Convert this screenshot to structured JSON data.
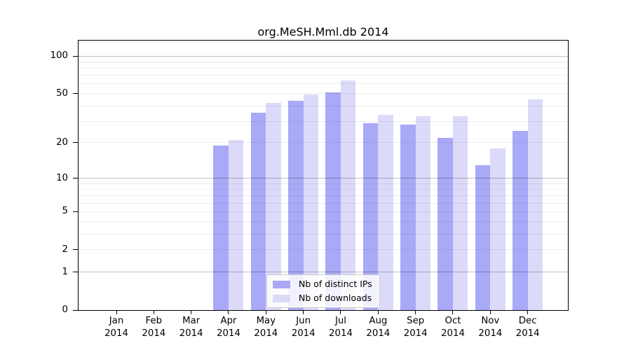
{
  "title": "org.MeSH.Mml.db 2014",
  "colors": {
    "distinct_ips_bar": "#a9a9f7",
    "downloads_bar": "#dbdbf9",
    "axis": "#000000"
  },
  "legend": {
    "position": "lower center",
    "items": [
      {
        "label": "Nb of distinct IPs",
        "color": "#a9a9f7"
      },
      {
        "label": "Nb of downloads",
        "color": "#dbdbf9"
      }
    ]
  },
  "chart_data": {
    "type": "bar",
    "title": "org.MeSH.Mml.db 2014",
    "categories": [
      "Jan 2014",
      "Feb 2014",
      "Mar 2014",
      "Apr 2014",
      "May 2014",
      "Jun 2014",
      "Jul 2014",
      "Aug 2014",
      "Sep 2014",
      "Oct 2014",
      "Nov 2014",
      "Dec 2014"
    ],
    "series": [
      {
        "name": "Nb of distinct IPs",
        "color": "#a9a9f7",
        "values": [
          0,
          0,
          0,
          19,
          35,
          44,
          51,
          29,
          28,
          22,
          13,
          25
        ]
      },
      {
        "name": "Nb of downloads",
        "color": "#dbdbf9",
        "values": [
          0,
          0,
          0,
          21,
          42,
          49,
          64,
          34,
          33,
          33,
          18,
          45
        ]
      }
    ],
    "xlabel": "",
    "ylabel": "",
    "yscale": "log1p",
    "ylim": [
      0,
      134
    ],
    "yticks": [
      0,
      1,
      2,
      5,
      10,
      20,
      50,
      100
    ],
    "minor_gridlines": [
      2,
      3,
      4,
      5,
      6,
      7,
      8,
      9,
      20,
      30,
      40,
      50,
      60,
      70,
      80,
      90
    ],
    "major_gridlines": [
      1,
      10,
      100
    ],
    "grid": true,
    "legend_position": "lower center"
  }
}
